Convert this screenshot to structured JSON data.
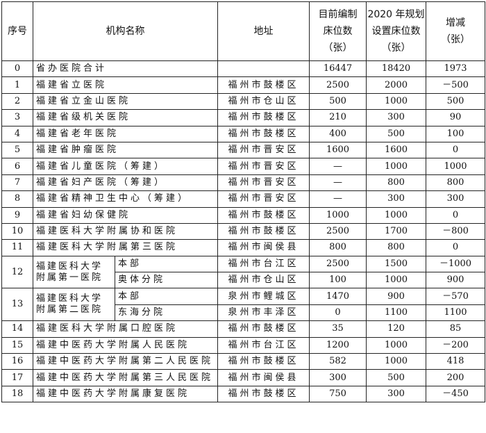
{
  "headers": {
    "seq": "序号",
    "name": "机构名称",
    "address": "地址",
    "current": [
      "目前编制",
      "床位数",
      "（张）"
    ],
    "plan": [
      "2020 年规划",
      "设置床位数",
      "（张）"
    ],
    "change": [
      "增减",
      "（张）"
    ]
  },
  "rows": [
    {
      "seq": "0",
      "name": "省办医院合计",
      "address": "",
      "current": "16447",
      "plan": "18420",
      "change": "1973"
    },
    {
      "seq": "1",
      "name": "福建省立医院",
      "address": "福州市鼓楼区",
      "current": "2500",
      "plan": "2000",
      "change": "－500"
    },
    {
      "seq": "2",
      "name": "福建省立金山医院",
      "address": "福州市仓山区",
      "current": "500",
      "plan": "1000",
      "change": "500"
    },
    {
      "seq": "3",
      "name": "福建省级机关医院",
      "address": "福州市鼓楼区",
      "current": "210",
      "plan": "300",
      "change": "90"
    },
    {
      "seq": "4",
      "name": "福建省老年医院",
      "address": "福州市鼓楼区",
      "current": "400",
      "plan": "500",
      "change": "100"
    },
    {
      "seq": "5",
      "name": "福建省肿瘤医院",
      "address": "福州市晋安区",
      "current": "1600",
      "plan": "1600",
      "change": "0"
    },
    {
      "seq": "6",
      "name": "福建省儿童医院（筹建）",
      "address": "福州市晋安区",
      "current": "—",
      "plan": "1000",
      "change": "1000"
    },
    {
      "seq": "7",
      "name": "福建省妇产医院（筹建）",
      "address": "福州市晋安区",
      "current": "—",
      "plan": "800",
      "change": "800"
    },
    {
      "seq": "8",
      "name": "福建省精神卫生中心（筹建）",
      "address": "福州市晋安区",
      "current": "—",
      "plan": "300",
      "change": "300"
    },
    {
      "seq": "9",
      "name": "福建省妇幼保健院",
      "address": "福州市鼓楼区",
      "current": "1000",
      "plan": "1000",
      "change": "0"
    },
    {
      "seq": "10",
      "name": "福建医科大学附属协和医院",
      "address": "福州市鼓楼区",
      "current": "2500",
      "plan": "1700",
      "change": "－800"
    },
    {
      "seq": "11",
      "name": "福建医科大学附属第三医院",
      "address": "福州市闽侯县",
      "current": "800",
      "plan": "800",
      "change": "0"
    }
  ],
  "split_rows": [
    {
      "seq": "12",
      "name": [
        "福建医科大学",
        "附属第一医院"
      ],
      "branches": [
        {
          "branch": "本部",
          "address": "福州市台江区",
          "current": "2500",
          "plan": "1500",
          "change": "－1000"
        },
        {
          "branch": "奥体分院",
          "address": "福州市仓山区",
          "current": "100",
          "plan": "1000",
          "change": "900"
        }
      ]
    },
    {
      "seq": "13",
      "name": [
        "福建医科大学",
        "附属第二医院"
      ],
      "branches": [
        {
          "branch": "本部",
          "address": "泉州市鲤城区",
          "current": "1470",
          "plan": "900",
          "change": "－570"
        },
        {
          "branch": "东海分院",
          "address": "泉州市丰泽区",
          "current": "0",
          "plan": "1100",
          "change": "1100"
        }
      ]
    }
  ],
  "rows_after": [
    {
      "seq": "14",
      "name": "福建医科大学附属口腔医院",
      "address": "福州市鼓楼区",
      "current": "35",
      "plan": "120",
      "change": "85"
    },
    {
      "seq": "15",
      "name": "福建中医药大学附属人民医院",
      "address": "福州市台江区",
      "current": "1200",
      "plan": "1000",
      "change": "－200"
    },
    {
      "seq": "16",
      "name": "福建中医药大学附属第二人民医院",
      "address": "福州市鼓楼区",
      "current": "582",
      "plan": "1000",
      "change": "418"
    },
    {
      "seq": "17",
      "name": "福建中医药大学附属第三人民医院",
      "address": "福州市闽侯县",
      "current": "300",
      "plan": "500",
      "change": "200"
    },
    {
      "seq": "18",
      "name": "福建中医药大学附属康复医院",
      "address": "福州市鼓楼区",
      "current": "750",
      "plan": "300",
      "change": "－450"
    }
  ]
}
